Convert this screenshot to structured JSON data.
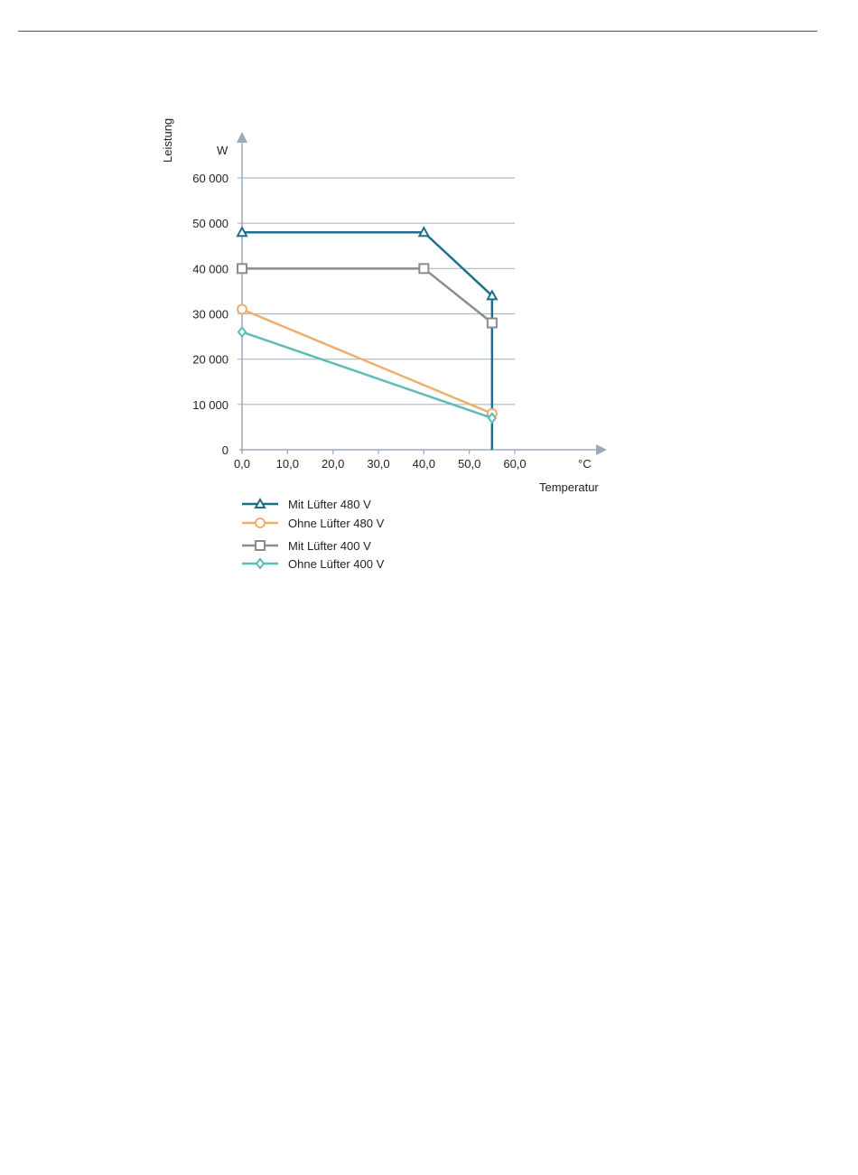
{
  "chart_data": {
    "type": "line",
    "ylabel": "Leistung",
    "yunit": "W",
    "xlabel": "Temperatur",
    "xunit": "°C",
    "xlim": [
      0,
      60
    ],
    "ylim": [
      0,
      60000
    ],
    "xticks": [
      "0,0",
      "10,0",
      "20,0",
      "30,0",
      "40,0",
      "50,0",
      "60,0"
    ],
    "xtick_values": [
      0,
      10,
      20,
      30,
      40,
      50,
      60
    ],
    "yticks": [
      "0",
      "10 000",
      "20 000",
      "30 000",
      "40 000",
      "50 000",
      "60 000"
    ],
    "ytick_values": [
      0,
      10000,
      20000,
      30000,
      40000,
      50000,
      60000
    ],
    "grid": true,
    "legend_position": "bottom",
    "series": [
      {
        "name": "Mit Lüfter 480 V",
        "color": "#1f6f8b",
        "marker": "triangle",
        "x": [
          0,
          40,
          55
        ],
        "y": [
          48000,
          48000,
          34000
        ],
        "drop_to_zero_at": 55
      },
      {
        "name": "Ohne Lüfter 480 V",
        "color": "#f0ad6a",
        "marker": "circle",
        "x": [
          0,
          55
        ],
        "y": [
          31000,
          8000
        ]
      },
      {
        "name": "Mit Lüfter 400 V",
        "color": "#8c8c8c",
        "marker": "square",
        "x": [
          0,
          40,
          55
        ],
        "y": [
          40000,
          40000,
          28000
        ]
      },
      {
        "name": "Ohne Lüfter 400 V",
        "color": "#5bbcb8",
        "marker": "diamond",
        "x": [
          0,
          55
        ],
        "y": [
          26000,
          7000
        ]
      }
    ]
  }
}
